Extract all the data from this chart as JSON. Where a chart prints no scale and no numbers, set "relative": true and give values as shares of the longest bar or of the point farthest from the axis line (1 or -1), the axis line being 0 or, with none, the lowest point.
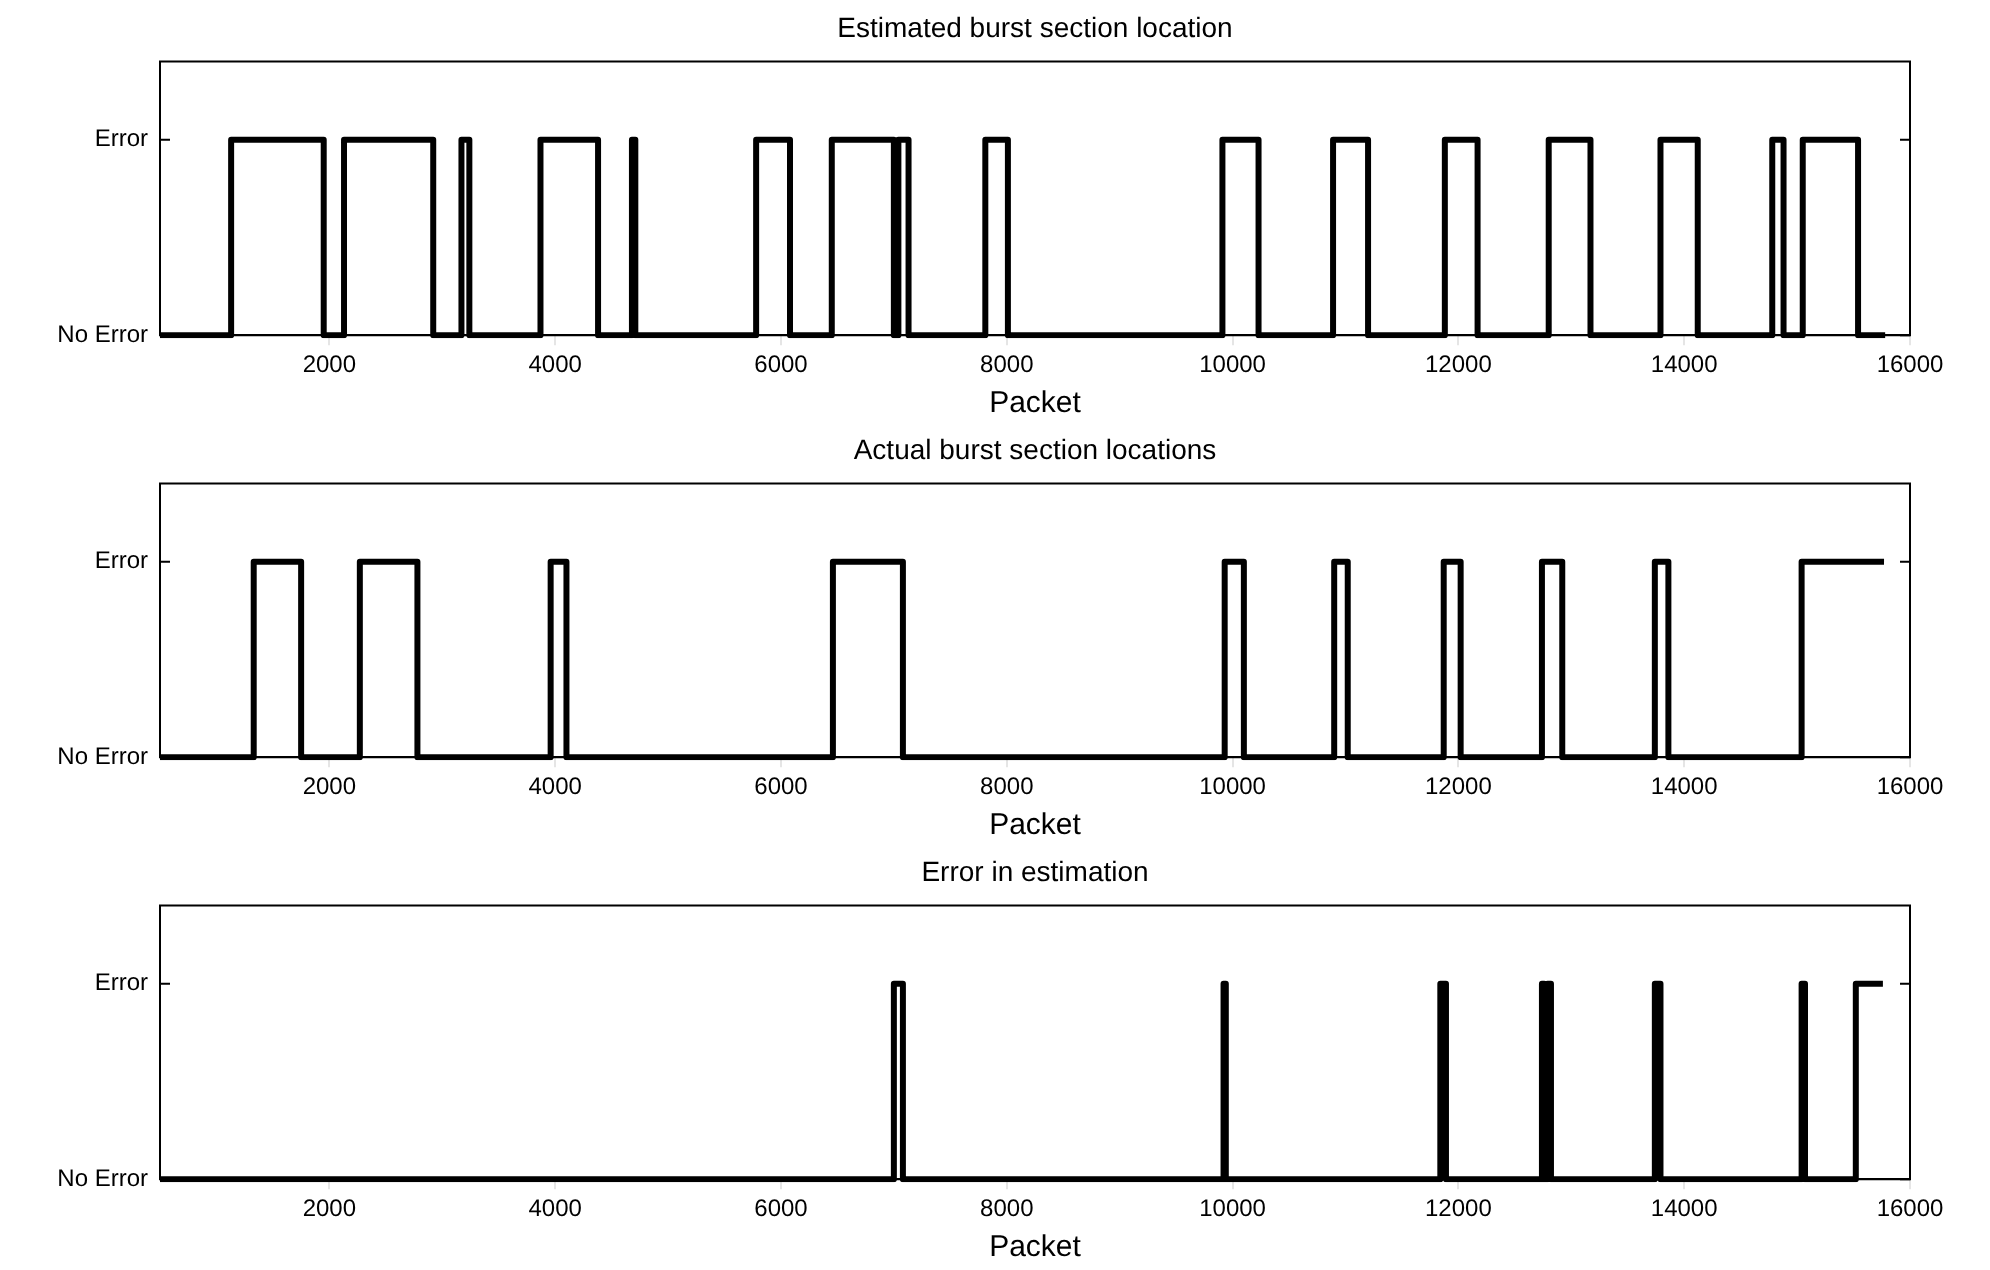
{
  "chart_data": [
    {
      "type": "step",
      "title": "Estimated burst section location",
      "xlabel": "Packet",
      "xlim": [
        500,
        16000
      ],
      "xticks": [
        2000,
        4000,
        6000,
        8000,
        10000,
        12000,
        14000,
        16000
      ],
      "relative": true,
      "annotations": [
        "Error",
        "No Error"
      ],
      "series": [
        {
          "color": "#000000",
          "x": [
            500,
            1130,
            1950,
            2130,
            2920,
            3170,
            3240,
            3870,
            4380,
            4680,
            4710,
            5780,
            6080,
            6450,
            7000,
            7040,
            7130,
            7810,
            8010,
            9910,
            10230,
            10890,
            11200,
            11880,
            12170,
            12800,
            13170,
            13790,
            14120,
            14780,
            14880,
            15050,
            15540,
            15780
          ],
          "values": [
            0,
            1,
            0,
            1,
            0,
            1,
            0,
            1,
            0,
            1,
            0,
            1,
            0,
            1,
            0,
            1,
            0,
            1,
            0,
            1,
            0,
            1,
            0,
            1,
            0,
            1,
            0,
            1,
            0,
            1,
            0,
            1,
            0,
            0
          ]
        }
      ]
    },
    {
      "type": "step",
      "title": "Actual burst section locations",
      "xlabel": "Packet",
      "xlim": [
        500,
        16000
      ],
      "xticks": [
        2000,
        4000,
        6000,
        8000,
        10000,
        12000,
        14000,
        16000
      ],
      "relative": true,
      "annotations": [
        "Error",
        "No Error"
      ],
      "series": [
        {
          "color": "#000000",
          "x": [
            500,
            1330,
            1750,
            2270,
            2780,
            3960,
            4100,
            6460,
            7080,
            9930,
            10100,
            10900,
            11020,
            11870,
            12020,
            12740,
            12920,
            13740,
            13860,
            15040,
            15770
          ],
          "values": [
            0,
            1,
            0,
            1,
            0,
            1,
            0,
            1,
            0,
            1,
            0,
            1,
            0,
            1,
            0,
            1,
            0,
            1,
            0,
            1,
            1
          ]
        }
      ]
    },
    {
      "type": "step",
      "title": "Error in estimation",
      "xlabel": "Packet",
      "xlim": [
        500,
        16000
      ],
      "xticks": [
        2000,
        4000,
        6000,
        8000,
        10000,
        12000,
        14000,
        16000
      ],
      "relative": true,
      "annotations": [
        "Error",
        "No Error"
      ],
      "series": [
        {
          "color": "#000000",
          "x": [
            500,
            7000,
            7080,
            9920,
            9940,
            11840,
            11890,
            12740,
            12760,
            12790,
            12820,
            13740,
            13790,
            15040,
            15070,
            15520,
            15760
          ],
          "values": [
            0,
            1,
            0,
            1,
            0,
            1,
            0,
            1,
            0,
            1,
            0,
            1,
            0,
            1,
            0,
            1,
            1
          ]
        }
      ]
    }
  ]
}
